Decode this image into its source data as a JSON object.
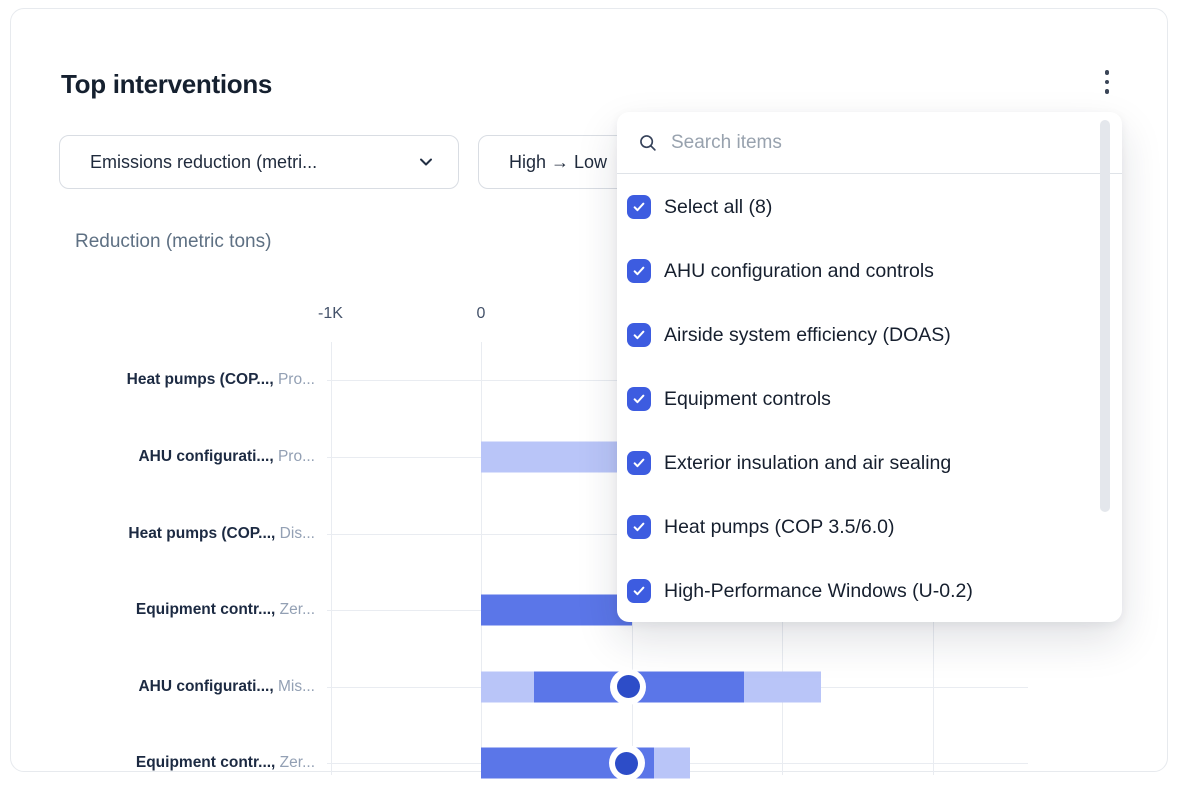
{
  "card": {
    "title": "Top interventions",
    "menu_icon": "kebab-vertical"
  },
  "filters": {
    "metric_label": "Emissions reduction (metri...",
    "sort_label": "High → Low",
    "chevron_icon": "chevron-down"
  },
  "dropdown": {
    "search_placeholder": "Search items",
    "search_icon": "magnifier",
    "check_icon": "checkmark",
    "items": [
      {
        "label": "Select all (8)",
        "checked": true
      },
      {
        "label": "AHU configuration and controls",
        "checked": true
      },
      {
        "label": "Airside system efficiency (DOAS)",
        "checked": true
      },
      {
        "label": "Equipment controls",
        "checked": true
      },
      {
        "label": "Exterior insulation and air sealing",
        "checked": true
      },
      {
        "label": "Heat pumps (COP 3.5/6.0)",
        "checked": true
      },
      {
        "label": "High-Performance Windows (U-0.2)",
        "checked": true
      }
    ]
  },
  "colors": {
    "bar_solid": "#5b76e8",
    "bar_light": "#b9c5f8",
    "marker_fill": "#2d4dc8",
    "marker_ring": "#ffffff",
    "checkbox": "#3d5ce0",
    "gridline": "#e9ecf1",
    "title_text": "#15202f",
    "muted_text": "#93a0b4"
  },
  "chart_data": {
    "type": "bar",
    "orientation": "horizontal",
    "title": "Top interventions",
    "axis_title": "Reduction (metric tons)",
    "units": "thousand metric tons",
    "x_ticks": [
      {
        "label": "-1K",
        "value": -1
      },
      {
        "label": "0",
        "value": 0
      }
    ],
    "x_gridline_values": [
      -1,
      0,
      1,
      2,
      3
    ],
    "grid": true,
    "legend": false,
    "rows": [
      {
        "label_bold": "Heat pumps (COP...,",
        "label_muted": "Pro...",
        "segments": [],
        "marker": null
      },
      {
        "label_bold": "AHU configurati...,",
        "label_muted": "Pro...",
        "segments": [
          {
            "from": 0,
            "to": 1.0,
            "tone": "light",
            "extends_under_dropdown": true
          }
        ],
        "marker": null
      },
      {
        "label_bold": "Heat pumps (COP...,",
        "label_muted": "Dis...",
        "segments": [],
        "marker": null
      },
      {
        "label_bold": "Equipment contr...,",
        "label_muted": "Zer...",
        "segments": [
          {
            "from": 0,
            "to": 1.0,
            "tone": "solid",
            "extends_under_dropdown": true
          }
        ],
        "marker": null
      },
      {
        "label_bold": "AHU configurati...,",
        "label_muted": "Mis...",
        "segments": [
          {
            "from": 0,
            "to": 0.35,
            "tone": "light"
          },
          {
            "from": 0.35,
            "to": 1.75,
            "tone": "solid"
          },
          {
            "from": 1.75,
            "to": 2.26,
            "tone": "light"
          }
        ],
        "marker": 0.98
      },
      {
        "label_bold": "Equipment contr...,",
        "label_muted": "Zer...",
        "segments": [
          {
            "from": 0,
            "to": 1.15,
            "tone": "solid"
          },
          {
            "from": 1.15,
            "to": 1.39,
            "tone": "light"
          }
        ],
        "marker": 0.97
      }
    ]
  }
}
